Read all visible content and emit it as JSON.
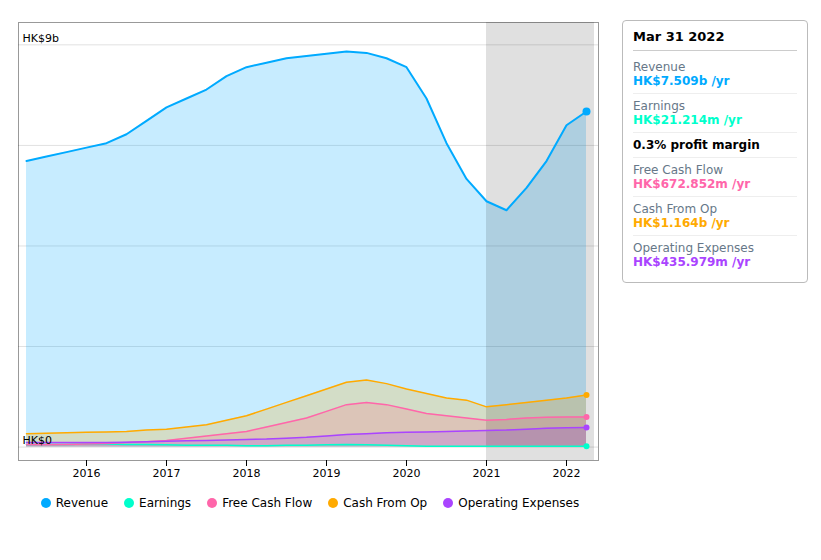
{
  "chart_data": {
    "type": "area",
    "x": [
      2015.25,
      2015.5,
      2015.75,
      2016.0,
      2016.25,
      2016.5,
      2016.75,
      2017.0,
      2017.25,
      2017.5,
      2017.75,
      2018.0,
      2018.25,
      2018.5,
      2018.75,
      2019.0,
      2019.25,
      2019.5,
      2019.75,
      2020.0,
      2020.25,
      2020.5,
      2020.75,
      2021.0,
      2021.25,
      2021.5,
      2021.75,
      2022.0,
      2022.25
    ],
    "series": [
      {
        "name": "Revenue",
        "color": "#00aaff",
        "values": [
          6.4,
          6.5,
          6.6,
          6.7,
          6.8,
          7.0,
          7.3,
          7.6,
          7.8,
          8.0,
          8.3,
          8.5,
          8.6,
          8.7,
          8.75,
          8.8,
          8.85,
          8.82,
          8.7,
          8.5,
          7.8,
          6.8,
          6.0,
          5.5,
          5.3,
          5.8,
          6.4,
          7.2,
          7.509
        ]
      },
      {
        "name": "Earnings",
        "color": "#00ffcc",
        "values": [
          0.05,
          0.06,
          0.06,
          0.07,
          0.07,
          0.06,
          0.06,
          0.05,
          0.04,
          0.04,
          0.04,
          0.03,
          0.03,
          0.04,
          0.04,
          0.05,
          0.06,
          0.05,
          0.04,
          0.03,
          0.02,
          0.02,
          0.02,
          0.02,
          0.02,
          0.02,
          0.02,
          0.021,
          0.021
        ]
      },
      {
        "name": "Free Cash Flow",
        "color": "#ff66aa",
        "values": [
          0.05,
          0.05,
          0.06,
          0.07,
          0.08,
          0.1,
          0.12,
          0.15,
          0.2,
          0.25,
          0.3,
          0.35,
          0.45,
          0.55,
          0.65,
          0.8,
          0.95,
          1.0,
          0.95,
          0.85,
          0.75,
          0.7,
          0.65,
          0.6,
          0.62,
          0.65,
          0.67,
          0.672,
          0.672
        ]
      },
      {
        "name": "Cash From Op",
        "color": "#ffaa00",
        "values": [
          0.3,
          0.31,
          0.32,
          0.33,
          0.34,
          0.35,
          0.38,
          0.4,
          0.45,
          0.5,
          0.6,
          0.7,
          0.85,
          1.0,
          1.15,
          1.3,
          1.45,
          1.5,
          1.42,
          1.3,
          1.2,
          1.1,
          1.05,
          0.9,
          0.95,
          1.0,
          1.05,
          1.1,
          1.164
        ]
      },
      {
        "name": "Operating Expenses",
        "color": "#aa44ff",
        "values": [
          0.1,
          0.1,
          0.1,
          0.1,
          0.1,
          0.11,
          0.12,
          0.13,
          0.14,
          0.15,
          0.16,
          0.17,
          0.18,
          0.2,
          0.22,
          0.25,
          0.28,
          0.3,
          0.32,
          0.33,
          0.34,
          0.35,
          0.36,
          0.37,
          0.38,
          0.4,
          0.42,
          0.43,
          0.436
        ]
      }
    ],
    "xlim": [
      2015.15,
      2022.4
    ],
    "xticks": [
      2016,
      2017,
      2018,
      2019,
      2020,
      2021,
      2022
    ],
    "ylim": [
      -0.3,
      9.5
    ],
    "yticks": [
      0.0,
      2.25,
      4.5,
      6.75,
      9.0
    ],
    "grid": true,
    "tick_labels": "x",
    "marker": "circle",
    "legend": "bottom",
    "shaded_x": [
      2021.0,
      2022.35
    ],
    "annotations": [
      {
        "text": "HK$9b",
        "y": 9
      },
      {
        "text": "HK$0",
        "y": 0
      }
    ],
    "tooltip": {
      "title": "Mar 31 2022",
      "rows": [
        {
          "label": "Revenue",
          "value": "HK$7.509b /yr",
          "color": "#00aaff"
        },
        {
          "label": "Earnings",
          "value": "HK$21.214m /yr",
          "color": "#00ffcc"
        },
        {
          "value": "0.3% profit margin"
        },
        {
          "label": "Free Cash Flow",
          "value": "HK$672.852m /yr",
          "color": "#ff66aa"
        },
        {
          "label": "Cash From Op",
          "value": "HK$1.164b /yr",
          "color": "#ffaa00"
        },
        {
          "label": "Operating Expenses",
          "value": "HK$435.979m /yr",
          "color": "#aa44ff"
        }
      ]
    }
  }
}
